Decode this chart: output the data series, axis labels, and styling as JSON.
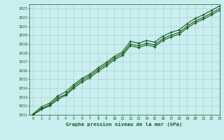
{
  "title": "Graphe pression niveau de la mer (hPa)",
  "bg_color": "#c8eef0",
  "line_color": "#1a5c1a",
  "marker_color": "#1a5c1a",
  "grid_color": "#b0c8c8",
  "xlim": [
    -0.5,
    23
  ],
  "ylim": [
    1011,
    1023.5
  ],
  "xticks": [
    0,
    1,
    2,
    3,
    4,
    5,
    6,
    7,
    8,
    9,
    10,
    11,
    12,
    13,
    14,
    15,
    16,
    17,
    18,
    19,
    20,
    21,
    22,
    23
  ],
  "yticks": [
    1011,
    1012,
    1013,
    1014,
    1015,
    1016,
    1017,
    1018,
    1019,
    1020,
    1021,
    1022,
    1023
  ],
  "series1_x": [
    0,
    1,
    2,
    3,
    4,
    5,
    6,
    7,
    8,
    9,
    10,
    11,
    12,
    13,
    14,
    15,
    16,
    17,
    18,
    19,
    20,
    21,
    22,
    23
  ],
  "series1_y": [
    1011.1,
    1011.9,
    1012.3,
    1013.1,
    1013.6,
    1014.4,
    1015.1,
    1015.6,
    1016.3,
    1016.9,
    1017.6,
    1018.1,
    1019.3,
    1019.1,
    1019.4,
    1019.2,
    1019.9,
    1020.3,
    1020.6,
    1021.3,
    1021.9,
    1022.3,
    1022.8,
    1023.3
  ],
  "series2_x": [
    0,
    1,
    2,
    3,
    4,
    5,
    6,
    7,
    8,
    9,
    10,
    11,
    12,
    13,
    14,
    15,
    16,
    17,
    18,
    19,
    20,
    21,
    22,
    23
  ],
  "series2_y": [
    1011.0,
    1011.7,
    1012.1,
    1012.9,
    1013.3,
    1014.2,
    1014.9,
    1015.4,
    1016.1,
    1016.7,
    1017.4,
    1017.9,
    1019.0,
    1018.8,
    1019.1,
    1018.9,
    1019.6,
    1020.0,
    1020.3,
    1021.0,
    1021.6,
    1022.0,
    1022.5,
    1023.0
  ],
  "series3_x": [
    0,
    1,
    2,
    3,
    4,
    5,
    6,
    7,
    8,
    9,
    10,
    11,
    12,
    13,
    14,
    15,
    16,
    17,
    18,
    19,
    20,
    21,
    22,
    23
  ],
  "series3_y": [
    1011.0,
    1011.6,
    1012.0,
    1012.7,
    1013.2,
    1014.0,
    1014.7,
    1015.2,
    1015.9,
    1016.5,
    1017.2,
    1017.7,
    1018.8,
    1018.6,
    1018.9,
    1018.7,
    1019.4,
    1019.8,
    1020.1,
    1020.8,
    1021.4,
    1021.8,
    1022.3,
    1022.8
  ]
}
